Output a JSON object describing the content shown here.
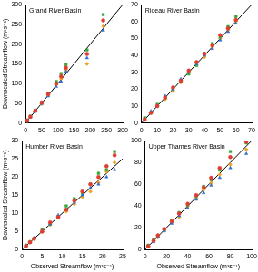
{
  "chart_data": [
    {
      "type": "scatter",
      "title": "Grand River Basin",
      "ylabel": "Downscaled Streamflow (m³s⁻¹)",
      "xlim": [
        0,
        300
      ],
      "xticks": [
        0,
        50,
        100,
        150,
        200,
        250,
        300
      ],
      "ylim": [
        0,
        300
      ],
      "yticks": [
        0,
        50,
        100,
        150,
        200,
        250,
        300
      ],
      "grid": false,
      "series": [
        {
          "color": "#e03c31",
          "marker": "circle",
          "x": [
            5,
            15,
            30,
            50,
            70,
            95,
            110,
            125,
            190,
            240
          ],
          "values": [
            6,
            16,
            31,
            52,
            73,
            100,
            118,
            140,
            175,
            260
          ]
        },
        {
          "color": "#2e6fd0",
          "marker": "triangle",
          "x": [
            5,
            15,
            30,
            50,
            70,
            95,
            110,
            125,
            190,
            240
          ],
          "values": [
            5,
            14,
            29,
            49,
            68,
            92,
            105,
            130,
            165,
            235
          ]
        },
        {
          "color": "#3aa53a",
          "marker": "rect",
          "x": [
            5,
            15,
            30,
            50,
            70,
            95,
            110,
            125,
            190,
            240
          ],
          "values": [
            7,
            17,
            32,
            51,
            75,
            105,
            125,
            148,
            185,
            275
          ]
        },
        {
          "color": "#f0a020",
          "marker": "rectRot",
          "x": [
            5,
            15,
            30,
            50,
            70,
            95,
            110,
            125,
            190,
            240
          ],
          "values": [
            4,
            15,
            30,
            48,
            71,
            97,
            112,
            135,
            150,
            245
          ]
        },
        {
          "type": "line",
          "color": "#000000",
          "line_style": "solid",
          "x": [
            0,
            300
          ],
          "values": [
            0,
            300
          ]
        }
      ]
    },
    {
      "type": "scatter",
      "title": "Rideau River Basin",
      "xlim": [
        0,
        70
      ],
      "xticks": [
        0,
        10,
        20,
        30,
        40,
        50,
        60,
        70
      ],
      "ylim": [
        0,
        70
      ],
      "yticks": [
        0,
        10,
        20,
        30,
        40,
        50,
        60,
        70
      ],
      "grid": false,
      "series": [
        {
          "color": "#e03c31",
          "marker": "circle",
          "x": [
            2,
            6,
            10,
            15,
            20,
            25,
            30,
            35,
            40,
            45,
            50,
            55,
            60
          ],
          "values": [
            2,
            6,
            10,
            15,
            21,
            25,
            31,
            36,
            41,
            46,
            52,
            56,
            61
          ]
        },
        {
          "color": "#2e6fd0",
          "marker": "triangle",
          "x": [
            2,
            6,
            10,
            15,
            20,
            25,
            30,
            35,
            40,
            45,
            50,
            55,
            60
          ],
          "values": [
            2,
            7,
            10,
            16,
            20,
            26,
            30,
            35,
            40,
            44,
            49,
            54,
            59
          ]
        },
        {
          "color": "#3aa53a",
          "marker": "rect",
          "x": [
            2,
            6,
            10,
            15,
            20,
            25,
            30,
            35,
            40,
            45,
            50,
            55,
            60
          ],
          "values": [
            3,
            6,
            11,
            15,
            20,
            25,
            29,
            34,
            41,
            47,
            51,
            57,
            63
          ]
        },
        {
          "color": "#f0a020",
          "marker": "rectRot",
          "x": [
            2,
            6,
            10,
            15,
            20,
            25,
            30,
            35,
            40,
            45,
            50,
            55,
            60
          ],
          "values": [
            2,
            6,
            10,
            14,
            19,
            24,
            30,
            36,
            39,
            45,
            50,
            55,
            60
          ]
        },
        {
          "type": "line",
          "color": "#000000",
          "line_style": "solid",
          "x": [
            0,
            70
          ],
          "values": [
            0,
            70
          ]
        }
      ]
    },
    {
      "type": "scatter",
      "title": "Humber River Basin",
      "ylabel": "Downscaled Streamflow (m³s⁻¹)",
      "xlabel": "Observed Streamflow (m³s⁻¹)",
      "xlim": [
        0,
        25
      ],
      "xticks": [
        0,
        5,
        10,
        15,
        20,
        25
      ],
      "ylim": [
        0,
        30
      ],
      "yticks": [
        0,
        5,
        10,
        15,
        20,
        25,
        30
      ],
      "grid": false,
      "series": [
        {
          "color": "#e03c31",
          "marker": "circle",
          "x": [
            1,
            2,
            3,
            5,
            7,
            9,
            11,
            13,
            15,
            17,
            19,
            21,
            23
          ],
          "values": [
            1,
            2,
            3,
            5,
            7.5,
            9,
            11,
            13.5,
            16,
            18,
            20,
            23,
            26
          ]
        },
        {
          "color": "#2e6fd0",
          "marker": "triangle",
          "x": [
            1,
            2,
            3,
            5,
            7,
            9,
            11,
            13,
            15,
            17,
            19,
            21,
            23
          ],
          "values": [
            1,
            2,
            3.2,
            5,
            7,
            9.5,
            11,
            13,
            15,
            17,
            18,
            20,
            22
          ]
        },
        {
          "color": "#3aa53a",
          "marker": "rect",
          "x": [
            1,
            2,
            3,
            5,
            7,
            9,
            11,
            13,
            15,
            17,
            19,
            21,
            23
          ],
          "values": [
            1.2,
            2,
            3,
            5.5,
            7,
            9,
            12,
            14,
            15.5,
            18,
            21,
            22,
            27
          ]
        },
        {
          "color": "#f0a020",
          "marker": "rectRot",
          "x": [
            1,
            2,
            3,
            5,
            7,
            9,
            11,
            13,
            15,
            17,
            19,
            21,
            23
          ],
          "values": [
            1,
            2.2,
            3,
            4.8,
            6.8,
            8.8,
            10.5,
            12.5,
            14.5,
            16,
            18.5,
            21.5,
            24
          ]
        },
        {
          "type": "line",
          "color": "#000000",
          "line_style": "solid",
          "x": [
            0,
            25
          ],
          "values": [
            0,
            25
          ]
        }
      ]
    },
    {
      "type": "scatter",
      "title": "Upper Thames River Basin",
      "xlabel": "Observed Streamflow (m³s⁻¹)",
      "xlim": [
        0,
        100
      ],
      "xticks": [
        0,
        20,
        40,
        60,
        80,
        100
      ],
      "ylim": [
        0,
        100
      ],
      "yticks": [
        0,
        20,
        40,
        60,
        80,
        100
      ],
      "grid": false,
      "series": [
        {
          "color": "#e03c31",
          "marker": "circle",
          "x": [
            3,
            8,
            12,
            18,
            25,
            32,
            40,
            48,
            55,
            62,
            70,
            80,
            95
          ],
          "values": [
            3,
            8,
            13,
            19,
            26,
            33,
            42,
            50,
            57,
            66,
            75,
            85,
            99
          ]
        },
        {
          "color": "#2e6fd0",
          "marker": "triangle",
          "x": [
            3,
            8,
            12,
            18,
            25,
            32,
            40,
            48,
            55,
            62,
            70,
            80,
            95
          ],
          "values": [
            3,
            7,
            12,
            17,
            24,
            31,
            38,
            46,
            52,
            59,
            66,
            75,
            88
          ]
        },
        {
          "color": "#3aa53a",
          "marker": "rect",
          "x": [
            3,
            8,
            12,
            18,
            25,
            32,
            40,
            48,
            55,
            62,
            70,
            80,
            95
          ],
          "values": [
            4,
            9,
            12,
            18,
            26,
            34,
            41,
            49,
            58,
            64,
            73,
            90,
            98
          ]
        },
        {
          "color": "#f0a020",
          "marker": "rectRot",
          "x": [
            3,
            8,
            12,
            18,
            25,
            32,
            40,
            48,
            55,
            62,
            70,
            80,
            95
          ],
          "values": [
            3,
            8,
            11,
            18,
            25,
            30,
            40,
            47,
            55,
            61,
            69,
            78,
            92
          ]
        },
        {
          "type": "line",
          "color": "#000000",
          "line_style": "solid",
          "x": [
            0,
            100
          ],
          "values": [
            0,
            100
          ]
        }
      ]
    }
  ]
}
